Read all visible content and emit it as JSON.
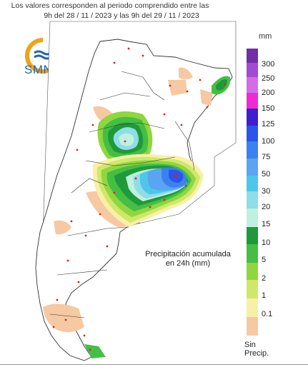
{
  "header": {
    "line1": "Los valores corresponden al periodo comprendido entre las",
    "line2": "9h del 28 / 11 / 2023  y las 9h del 29 / 11 / 2023"
  },
  "logo": {
    "text": "SMN"
  },
  "legend": {
    "unit": "mm",
    "items": [
      {
        "label": "300",
        "color": "#6f2fa6"
      },
      {
        "label": "250",
        "color": "#a24bd0"
      },
      {
        "label": "200",
        "color": "#d66be8"
      },
      {
        "label": "150",
        "color": "#ef2ad4"
      },
      {
        "label": "125",
        "color": "#3d1fd0"
      },
      {
        "label": "100",
        "color": "#2a55e8"
      },
      {
        "label": "75",
        "color": "#3b82f0"
      },
      {
        "label": "50",
        "color": "#5ba4f2"
      },
      {
        "label": "30",
        "color": "#4dc6ea"
      },
      {
        "label": "20",
        "color": "#8fdde6"
      },
      {
        "label": "15",
        "color": "#bff0e0"
      },
      {
        "label": "10",
        "color": "#1f9a3a"
      },
      {
        "label": "5",
        "color": "#44bf44"
      },
      {
        "label": "2",
        "color": "#8fd63f"
      },
      {
        "label": "1",
        "color": "#cfe86a"
      },
      {
        "label": "0.1",
        "color": "#f8f0a6"
      },
      {
        "label": "",
        "color": "#f6c9a2"
      }
    ],
    "no_precip": "Sin\nPrecip."
  },
  "caption": "Precipitación acumulada\nen 24h (mm)"
}
